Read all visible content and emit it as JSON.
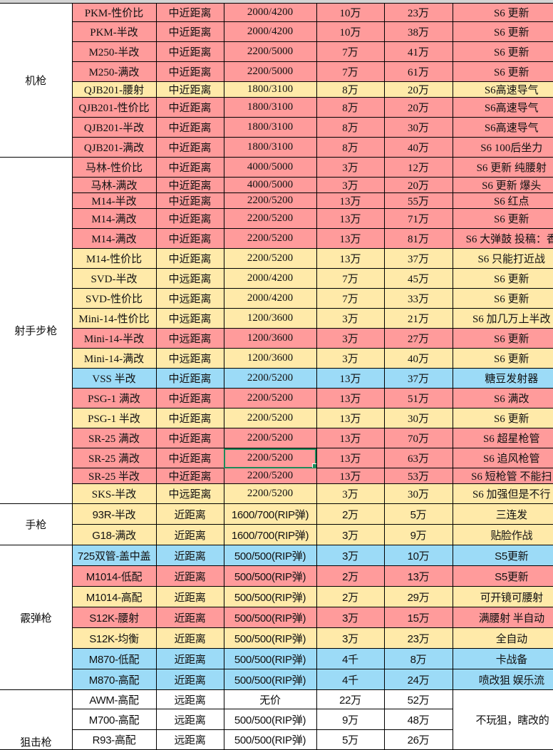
{
  "colors": {
    "red": "#ff9b9b",
    "yellow": "#ffeaa9",
    "blue": "#9cdbf7",
    "white": "#ffffff",
    "selection": "#1e8a5a"
  },
  "groups": [
    {
      "category": "机枪",
      "rows": [
        {
          "name": "PKM-性价比",
          "range": "中近距离",
          "dist": "2000/4200",
          "p1": "10万",
          "p2": "23万",
          "note": "S6 更新",
          "color": "red"
        },
        {
          "name": "PKM-半改",
          "range": "中近距离",
          "dist": "2000/4200",
          "p1": "10万",
          "p2": "38万",
          "note": "S6 更新",
          "color": "red"
        },
        {
          "name": "M250-半改",
          "range": "中近距离",
          "dist": "2200/5000",
          "p1": "7万",
          "p2": "41万",
          "note": "S6 更新",
          "color": "red"
        },
        {
          "name": "M250-满改",
          "range": "中近距离",
          "dist": "2200/5000",
          "p1": "7万",
          "p2": "61万",
          "note": "S6 更新",
          "color": "red"
        },
        {
          "name": "QJB201-腰射",
          "range": "中近距离",
          "dist": "1800/3100",
          "p1": "8万",
          "p2": "20万",
          "note": "S6高速导气",
          "color": "yellow"
        },
        {
          "name": "QJB201-性价比",
          "range": "中近距离",
          "dist": "1800/3100",
          "p1": "8万",
          "p2": "20万",
          "note": "S6高速导气",
          "color": "red"
        },
        {
          "name": "QJB201-半改",
          "range": "中近距离",
          "dist": "1800/3100",
          "p1": "8万",
          "p2": "30万",
          "note": "S6高速导气",
          "color": "red"
        },
        {
          "name": "QJB201-满改",
          "range": "中近距离",
          "dist": "1800/3100",
          "p1": "8万",
          "p2": "40万",
          "note": "S6 100后坐力",
          "color": "red"
        }
      ]
    },
    {
      "category": "射手步枪",
      "rows": [
        {
          "name": "马林-性价比",
          "range": "中近距离",
          "dist": "4000/5000",
          "p1": "3万",
          "p2": "12万",
          "note": "S6 更新 纯腰射",
          "color": "red"
        },
        {
          "name": "马林-满改",
          "range": "中近距离",
          "dist": "4000/5000",
          "p1": "3万",
          "p2": "20万",
          "note": "S6 更新 爆头",
          "color": "red"
        },
        {
          "name": "M14-半改",
          "range": "中近距离",
          "dist": "2200/5200",
          "p1": "13万",
          "p2": "55万",
          "note": "S6 红点",
          "color": "red"
        },
        {
          "name": "M14-满改",
          "range": "中近距离",
          "dist": "2200/5200",
          "p1": "13万",
          "p2": "71万",
          "note": "S6 更新",
          "color": "red"
        },
        {
          "name": "M14-满改",
          "range": "中近距离",
          "dist": "2200/5200",
          "p1": "13万",
          "p2": "81万",
          "note": "S6 大弹鼓  投稿：香",
          "color": "red"
        },
        {
          "name": "M14-性价比",
          "range": "中近距离",
          "dist": "2200/5200",
          "p1": "13万",
          "p2": "37万",
          "note": "S6 只能打近战",
          "color": "yellow"
        },
        {
          "name": "SVD-半改",
          "range": "中远距离",
          "dist": "2000/4200",
          "p1": "7万",
          "p2": "45万",
          "note": "S6 更新",
          "color": "yellow"
        },
        {
          "name": "SVD-性价比",
          "range": "中远距离",
          "dist": "2000/4200",
          "p1": "7万",
          "p2": "33万",
          "note": "S6 更新",
          "color": "yellow"
        },
        {
          "name": "Mini-14-性价比",
          "range": "中远距离",
          "dist": "1200/3600",
          "p1": "3万",
          "p2": "21万",
          "note": "S6 加几万上半改",
          "color": "yellow"
        },
        {
          "name": "Mini-14-半改",
          "range": "中远距离",
          "dist": "1200/3600",
          "p1": "3万",
          "p2": "27万",
          "note": "S6 更新",
          "color": "red"
        },
        {
          "name": "Mini-14-满改",
          "range": "中远距离",
          "dist": "1200/3600",
          "p1": "3万",
          "p2": "40万",
          "note": "S6 更新",
          "color": "yellow"
        },
        {
          "name": "VSS 半改",
          "range": "中近距离",
          "dist": "2200/5200",
          "p1": "13万",
          "p2": "37万",
          "note": "糖豆发射器",
          "color": "blue"
        },
        {
          "name": "PSG-1 满改",
          "range": "中近距离",
          "dist": "2200/5200",
          "p1": "13万",
          "p2": "51万",
          "note": "S6 满改",
          "color": "red"
        },
        {
          "name": "PSG-1 半改",
          "range": "中近距离",
          "dist": "2200/5200",
          "p1": "13万",
          "p2": "30万",
          "note": "S6 更新",
          "color": "yellow"
        },
        {
          "name": "SR-25 满改",
          "range": "中近距离",
          "dist": "2200/5200",
          "p1": "13万",
          "p2": "70万",
          "note": "S6 超星枪管",
          "color": "red"
        },
        {
          "name": "SR-25 满改",
          "range": "中近距离",
          "dist": "2200/5200",
          "p1": "13万",
          "p2": "63万",
          "note": "S6 追风枪管",
          "color": "red",
          "selected": "dist"
        },
        {
          "name": "SR-25 半改",
          "range": "中近距离",
          "dist": "2200/5200",
          "p1": "13万",
          "p2": "53万",
          "note": "S6 短枪管 不能扫",
          "color": "red"
        },
        {
          "name": "SKS-半改",
          "range": "中远距离",
          "dist": "2200/5200",
          "p1": "3万",
          "p2": "30万",
          "note": "S6 加强但是不行",
          "color": "yellow"
        }
      ]
    },
    {
      "category": "手枪",
      "rows": [
        {
          "name": "93R-半改",
          "range": "近距离",
          "dist": "1600/700(RIP弹)",
          "p1": "2万",
          "p2": "5万",
          "note": "三连发",
          "color": "yellow"
        },
        {
          "name": "G18-满改",
          "range": "近距离",
          "dist": "1600/700(RIP弹)",
          "p1": "3万",
          "p2": "9万",
          "note": "贴脸作战",
          "color": "yellow"
        }
      ]
    },
    {
      "category": "霰弹枪",
      "rows": [
        {
          "name": "725双管-盖中盖",
          "range": "近距离",
          "dist": "500/500(RIP弹)",
          "p1": "3万",
          "p2": "10万",
          "note": "S5更新",
          "color": "blue"
        },
        {
          "name": "M1014-低配",
          "range": "近距离",
          "dist": "500/500(RIP弹)",
          "p1": "2万",
          "p2": "13万",
          "note": "S5更新",
          "color": "red"
        },
        {
          "name": "M1014-高配",
          "range": "近距离",
          "dist": "500/500(RIP弹)",
          "p1": "2万",
          "p2": "29万",
          "note": "可开镜可腰射",
          "color": "yellow"
        },
        {
          "name": "S12K-腰射",
          "range": "近距离",
          "dist": "500/500(RIP弹)",
          "p1": "3万",
          "p2": "15万",
          "note": "满腰射 半自动",
          "color": "red"
        },
        {
          "name": "S12K-均衡",
          "range": "近距离",
          "dist": "500/500(RIP弹)",
          "p1": "3万",
          "p2": "23万",
          "note": "全自动",
          "color": "yellow"
        },
        {
          "name": "M870-低配",
          "range": "近距离",
          "dist": "500/500(RIP弹)",
          "p1": "4千",
          "p2": "8万",
          "note": "卡战备",
          "color": "blue"
        },
        {
          "name": "M870-高配",
          "range": "近距离",
          "dist": "500/500(RIP弹)",
          "p1": "4千",
          "p2": "24万",
          "note": "喷改狙 娱乐流",
          "color": "blue"
        }
      ]
    },
    {
      "category": "狙击枪",
      "note": "不玩狙，瞎改的",
      "rows": [
        {
          "name": "AWM-高配",
          "range": "远距离",
          "dist": "无价",
          "p1": "22万",
          "p2": "52万",
          "color": "white"
        },
        {
          "name": "M700-高配",
          "range": "远距离",
          "dist": "500/500(RIP弹)",
          "p1": "9万",
          "p2": "48万",
          "color": "white"
        },
        {
          "name": "R93-高配",
          "range": "远距离",
          "dist": "500/500(RIP弹)",
          "p1": "5万",
          "p2": "26万",
          "color": "white"
        }
      ]
    }
  ]
}
